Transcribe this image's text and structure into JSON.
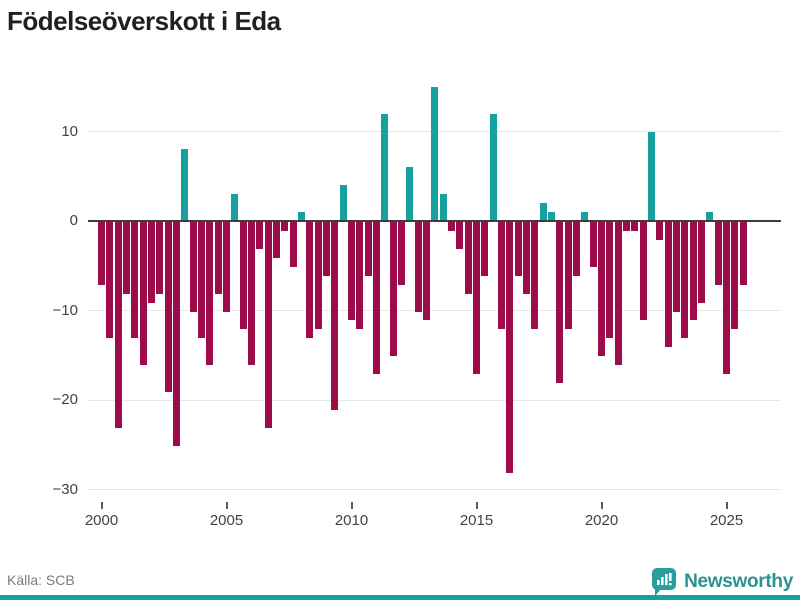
{
  "title": "Födelseöverskott i Eda",
  "source": "Källa: SCB",
  "branding": {
    "name": "Newsworthy"
  },
  "colors": {
    "positive": "#16a0a0",
    "negative": "#9d0c4a",
    "grid": "#e7e7e7",
    "zero_line": "#3d3d3d",
    "axis_text": "#454141",
    "muted_text": "#7c7c7c",
    "brand_teal": "#2b9292"
  },
  "chart_data": {
    "type": "bar",
    "title": "Födelseöverskott i Eda",
    "xlabel": "",
    "ylabel": "",
    "start_year": 2000,
    "periods_per_year": 3,
    "ylim": [
      -30,
      15
    ],
    "grid": "horizontal",
    "legend": "none",
    "y_ticks": [
      {
        "label": "10",
        "value": 10
      },
      {
        "label": "0",
        "value": 0
      },
      {
        "label": "−10",
        "value": -10
      },
      {
        "label": "−20",
        "value": -20
      },
      {
        "label": "−30",
        "value": -30
      }
    ],
    "x_ticks": [
      {
        "label": "2000",
        "year": 2000
      },
      {
        "label": "2005",
        "year": 2005
      },
      {
        "label": "2010",
        "year": 2010
      },
      {
        "label": "2015",
        "year": 2015
      },
      {
        "label": "2020",
        "year": 2020
      },
      {
        "label": "2025",
        "year": 2025
      }
    ],
    "values": [
      -7,
      -13,
      -23,
      -8,
      -13,
      -16,
      -9,
      -8,
      -19,
      -25,
      8,
      -10,
      -13,
      -16,
      -8,
      -10,
      3,
      -12,
      -16,
      -3,
      -23,
      -4,
      -1,
      -5,
      1,
      -13,
      -12,
      -6,
      -21,
      4,
      -11,
      -12,
      -6,
      -17,
      12,
      -15,
      -7,
      6,
      -10,
      -11,
      15,
      3,
      -1,
      -3,
      -8,
      -17,
      -6,
      12,
      -12,
      -28,
      -6,
      -8,
      -12,
      2,
      1,
      -18,
      -12,
      -6,
      1,
      -5,
      -15,
      -13,
      -16,
      -1,
      -1,
      -11,
      10,
      -2,
      -14,
      -10,
      -13,
      -11,
      -9,
      1,
      -7,
      -17,
      -12,
      -7
    ]
  }
}
